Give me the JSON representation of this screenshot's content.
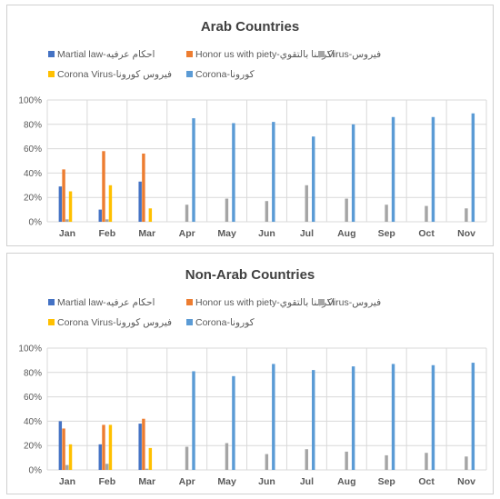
{
  "colors": {
    "martial": "#4472C4",
    "honor": "#ED7D31",
    "virus": "#A5A5A5",
    "coronavirus": "#FFC000",
    "corona": "#5B9BD5",
    "grid": "#D9D9D9",
    "axis_text": "#595959",
    "title_text": "#404040"
  },
  "chart_data": [
    {
      "type": "bar",
      "title": "Arab Countries",
      "xlabel": "",
      "ylabel": "",
      "categories": [
        "Jan",
        "Feb",
        "Mar",
        "Apr",
        "May",
        "Jun",
        "Jul",
        "Aug",
        "Sep",
        "Oct",
        "Nov"
      ],
      "ylim": [
        0,
        100
      ],
      "yticks": [
        "0%",
        "20%",
        "40%",
        "60%",
        "80%",
        "100%"
      ],
      "grid": true,
      "legend_position": "top",
      "series": [
        {
          "name": "Martial law-احكام عرفيه",
          "values": [
            29,
            10,
            33,
            0,
            0,
            0,
            0,
            0,
            0,
            0,
            0
          ]
        },
        {
          "name": "Honor us with piety-اكرمنا بالتقوي",
          "values": [
            43,
            58,
            56,
            0,
            0,
            0,
            0,
            0,
            0,
            0,
            0
          ]
        },
        {
          "name": "Virus-فيروس",
          "values": [
            2,
            2,
            0,
            14,
            19,
            17,
            30,
            19,
            14,
            13,
            11
          ]
        },
        {
          "name": "Corona Virus-فيروس كورونا",
          "values": [
            25,
            30,
            11,
            0,
            0,
            0,
            0,
            0,
            0,
            0,
            0
          ]
        },
        {
          "name": "Corona-كورونا",
          "values": [
            0,
            0,
            0,
            85,
            81,
            82,
            70,
            80,
            86,
            86,
            89
          ]
        }
      ]
    },
    {
      "type": "bar",
      "title": "Non-Arab Countries",
      "xlabel": "",
      "ylabel": "",
      "categories": [
        "Jan",
        "Feb",
        "Mar",
        "Apr",
        "May",
        "Jun",
        "Jul",
        "Aug",
        "Sep",
        "Oct",
        "Nov"
      ],
      "ylim": [
        0,
        100
      ],
      "yticks": [
        "0%",
        "20%",
        "40%",
        "60%",
        "80%",
        "100%"
      ],
      "grid": true,
      "legend_position": "top",
      "series": [
        {
          "name": "Martial law-احكام عرفيه",
          "values": [
            40,
            21,
            38,
            0,
            0,
            0,
            0,
            0,
            0,
            0,
            0
          ]
        },
        {
          "name": "Honor us with piety-اكرمنا بالتقوي",
          "values": [
            34,
            37,
            42,
            0,
            0,
            0,
            0,
            0,
            0,
            0,
            0
          ]
        },
        {
          "name": "Virus-فيروس",
          "values": [
            4,
            5,
            1,
            19,
            22,
            13,
            17,
            15,
            12,
            14,
            11
          ]
        },
        {
          "name": "Corona Virus-فيروس كورونا",
          "values": [
            21,
            37,
            18,
            0,
            0,
            0,
            0,
            0,
            0,
            0,
            0
          ]
        },
        {
          "name": "Corona-كورونا",
          "values": [
            0,
            0,
            0,
            81,
            77,
            87,
            82,
            85,
            87,
            86,
            88
          ]
        }
      ]
    }
  ]
}
